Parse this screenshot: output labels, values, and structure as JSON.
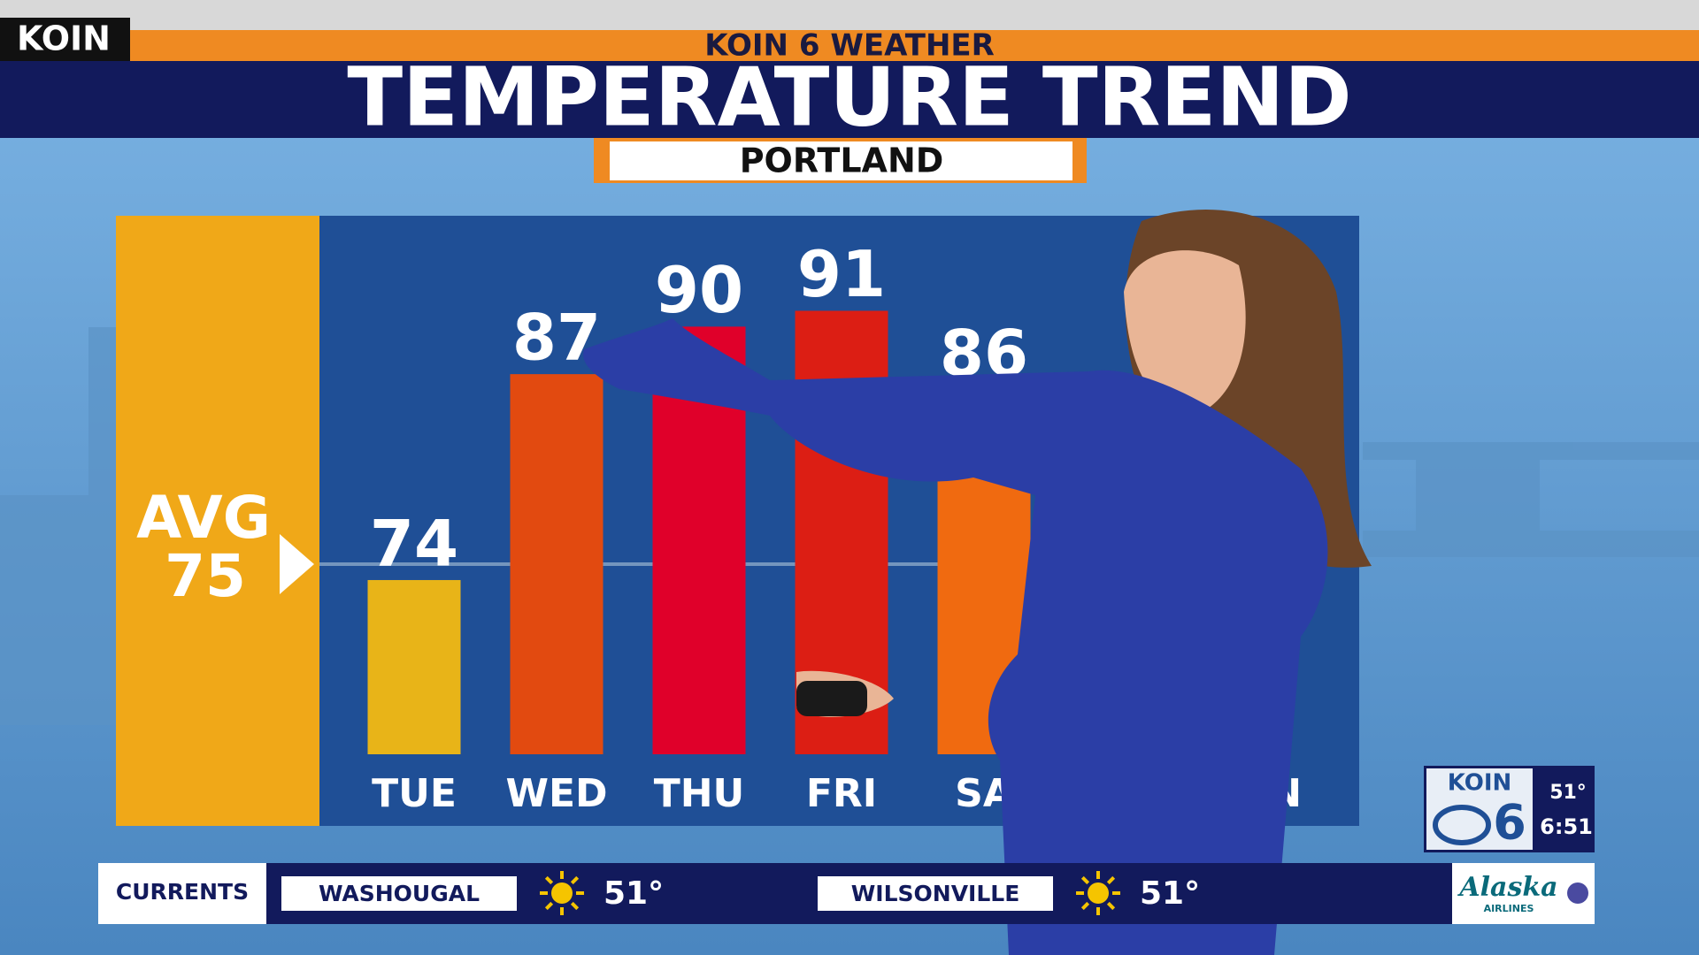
{
  "header": {
    "brand": "KOIN",
    "network": "KOIN 6 WEATHER",
    "title": "TEMPERATURE TREND",
    "location": "PORTLAND"
  },
  "chart_data": {
    "type": "bar",
    "categories": [
      "TUE",
      "WED",
      "THU",
      "FRI",
      "SA",
      null,
      "ON"
    ],
    "values": [
      74,
      87,
      90,
      91,
      86,
      null,
      null
    ],
    "colors": [
      "#e8b418",
      "#e24a10",
      "#e0002a",
      "#dc1e14",
      "#f06a10",
      null,
      "#e8b418"
    ],
    "ylim": [
      63,
      97
    ],
    "avg_label": "AVG",
    "avg": 75
  },
  "ticker": {
    "label": "CURRENTS",
    "items": [
      {
        "city": "WASHOUGAL",
        "temp": "51°"
      },
      {
        "city": "WILSONVILLE",
        "temp": "51°"
      }
    ],
    "sponsor": "Alaska",
    "sponsor_sub": "AIRLINES"
  },
  "bug": {
    "station": "KOIN",
    "channel": "6",
    "temp": "51°",
    "time": "6:51"
  }
}
